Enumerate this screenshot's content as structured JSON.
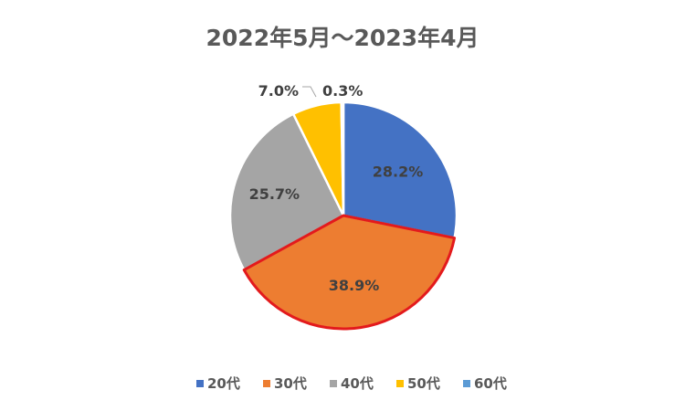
{
  "chart_data": {
    "type": "pie",
    "title": "2022年5月～2023年4月",
    "categories": [
      "20代",
      "30代",
      "40代",
      "50代",
      "60代"
    ],
    "values": [
      28.2,
      38.9,
      25.7,
      7.0,
      0.3
    ],
    "labels": [
      "28.2%",
      "38.9%",
      "25.7%",
      "7.0%",
      "0.3%"
    ],
    "colors": [
      "#4472C4",
      "#ED7D31",
      "#A5A5A5",
      "#FFC000",
      "#5B9BD5"
    ],
    "highlight": {
      "category": "30代",
      "outline_color": "#E31A1C"
    },
    "legend": "bottom"
  }
}
